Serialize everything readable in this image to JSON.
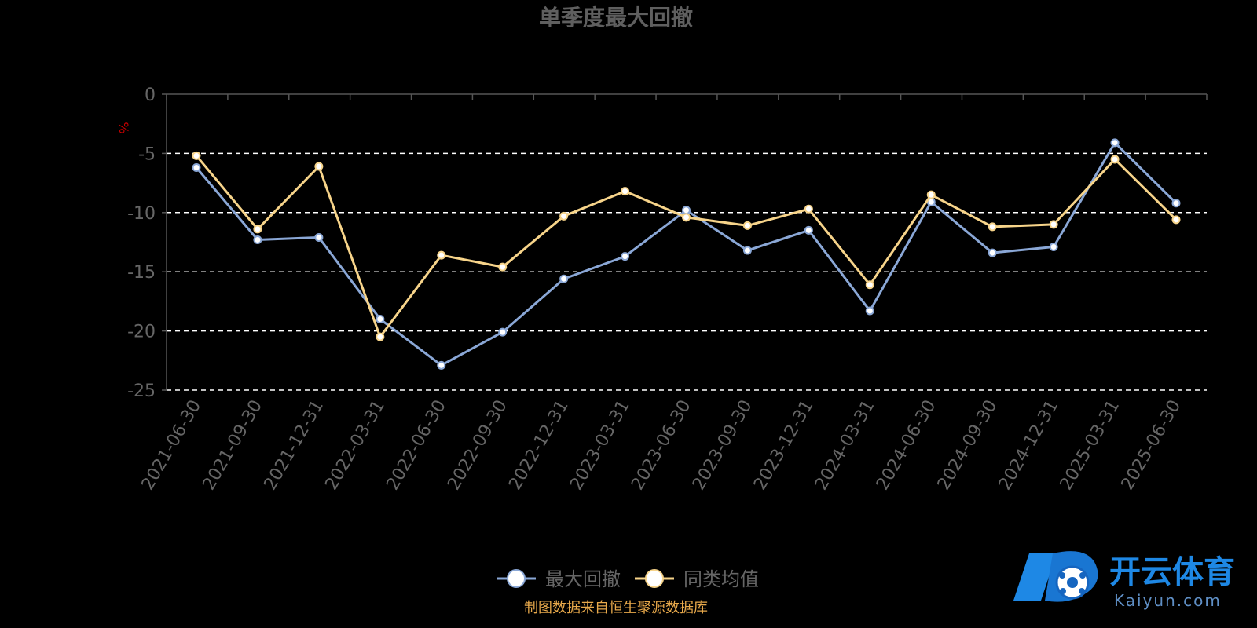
{
  "chart_data": {
    "type": "line",
    "title": "单季度最大回撤",
    "ylabel": "%",
    "ylim": [
      -25,
      0
    ],
    "yticks": [
      0,
      -5,
      -10,
      -15,
      -20,
      -25
    ],
    "grid": true,
    "legend_position": "bottom",
    "categories": [
      "2021-06-30",
      "2021-09-30",
      "2021-12-31",
      "2022-03-31",
      "2022-06-30",
      "2022-09-30",
      "2022-12-31",
      "2023-03-31",
      "2023-06-30",
      "2023-09-30",
      "2023-12-31",
      "2024-03-31",
      "2024-06-30",
      "2024-09-30",
      "2024-12-31",
      "2025-03-31",
      "2025-06-30"
    ],
    "series": [
      {
        "name": "最大回撤",
        "color": "#8aa7d6",
        "values": [
          -6.2,
          -12.3,
          -12.1,
          -19.0,
          -22.9,
          -20.1,
          -15.6,
          -13.7,
          -9.8,
          -13.2,
          -11.5,
          -18.3,
          -9.1,
          -13.4,
          -12.9,
          -4.1,
          -9.2
        ]
      },
      {
        "name": "同类均值",
        "color": "#f7d48a",
        "values": [
          -5.2,
          -11.4,
          -6.1,
          -20.5,
          -13.6,
          -14.6,
          -10.3,
          -8.2,
          -10.4,
          -11.1,
          -9.7,
          -16.1,
          -8.5,
          -11.2,
          -11.0,
          -5.5,
          -10.6
        ]
      }
    ]
  },
  "source_text": "制图数据来自恒生聚源数据库",
  "watermark": {
    "cn": "开云体育",
    "en": "Kaiyun.com"
  }
}
